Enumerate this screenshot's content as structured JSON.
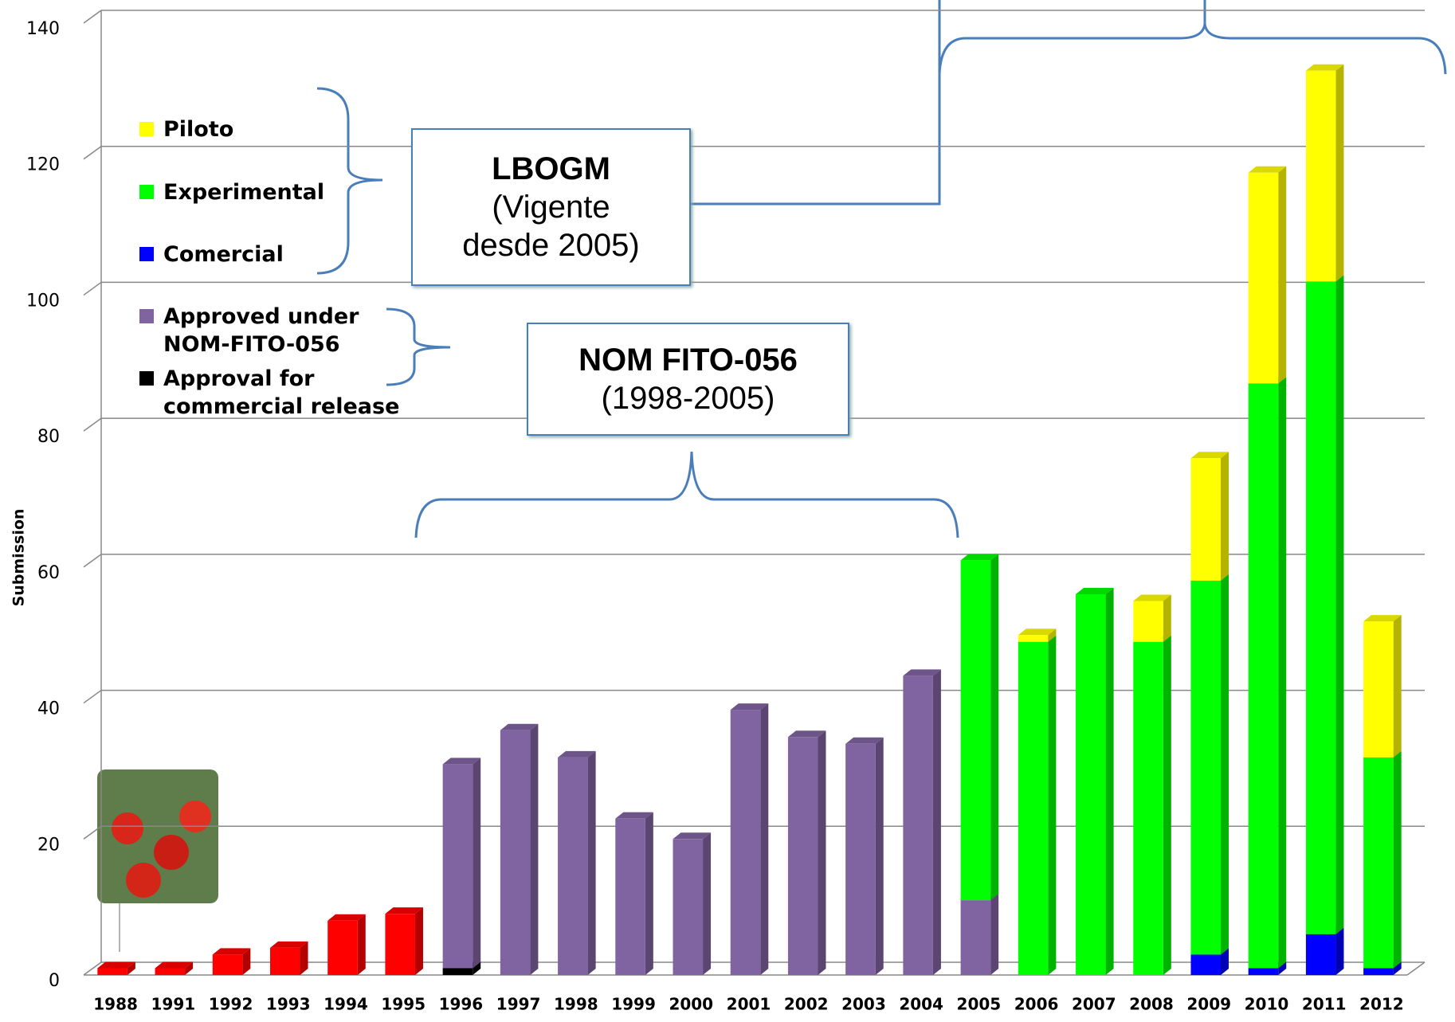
{
  "chart_data": {
    "type": "stacked_bar_3d",
    "y_label": "Submission",
    "categories": [
      "1988",
      "1991",
      "1992",
      "1993",
      "1994",
      "1995",
      "1996",
      "1997",
      "1998",
      "1999",
      "2000",
      "2001",
      "2002",
      "2003",
      "2004",
      "2005",
      "2006",
      "2007",
      "2008",
      "2009",
      "2010",
      "2011",
      "2012"
    ],
    "series": [
      {
        "name": "Piloto",
        "color": "#ffff00",
        "values": [
          null,
          null,
          null,
          null,
          null,
          null,
          null,
          null,
          null,
          null,
          null,
          null,
          null,
          null,
          null,
          null,
          1,
          null,
          6,
          18,
          31,
          31,
          20
        ]
      },
      {
        "name": "Experimental",
        "color": "#00ff00",
        "values": [
          null,
          null,
          null,
          null,
          null,
          null,
          null,
          null,
          null,
          null,
          null,
          null,
          null,
          null,
          null,
          50,
          49,
          56,
          49,
          55,
          86,
          96,
          31
        ]
      },
      {
        "name": "Comercial",
        "color": "#0000ff",
        "values": [
          null,
          null,
          null,
          null,
          null,
          null,
          null,
          null,
          null,
          null,
          null,
          null,
          null,
          null,
          null,
          null,
          null,
          null,
          null,
          3,
          1,
          6,
          1
        ]
      },
      {
        "name": "Approved under NOM-FITO-056",
        "color": "#8064a2",
        "values": [
          null,
          null,
          null,
          null,
          null,
          null,
          30,
          36,
          32,
          23,
          20,
          39,
          35,
          34,
          44,
          11,
          null,
          null,
          null,
          null,
          null,
          null,
          null
        ]
      },
      {
        "name": "Approval for commercial release",
        "color": "#000000",
        "values": [
          null,
          null,
          null,
          null,
          null,
          null,
          1,
          null,
          null,
          null,
          null,
          null,
          null,
          null,
          null,
          null,
          null,
          null,
          null,
          null,
          null,
          null,
          null
        ]
      },
      {
        "color": "#ff0000",
        "values": [
          1,
          1,
          3,
          4,
          8,
          9,
          null,
          null,
          null,
          null,
          null,
          null,
          null,
          null,
          null,
          null,
          null,
          null,
          null,
          null,
          null,
          null,
          null
        ]
      }
    ],
    "ylim": [
      0,
      140
    ],
    "yticks": [
      0,
      20,
      40,
      60,
      80,
      100,
      120,
      140
    ],
    "grid": true,
    "annotations": [
      {
        "title": "LBOGM",
        "note": "(Vigente desde 2005)"
      },
      {
        "title": "NOM FITO-056",
        "note": "(1998-2005)"
      }
    ]
  }
}
